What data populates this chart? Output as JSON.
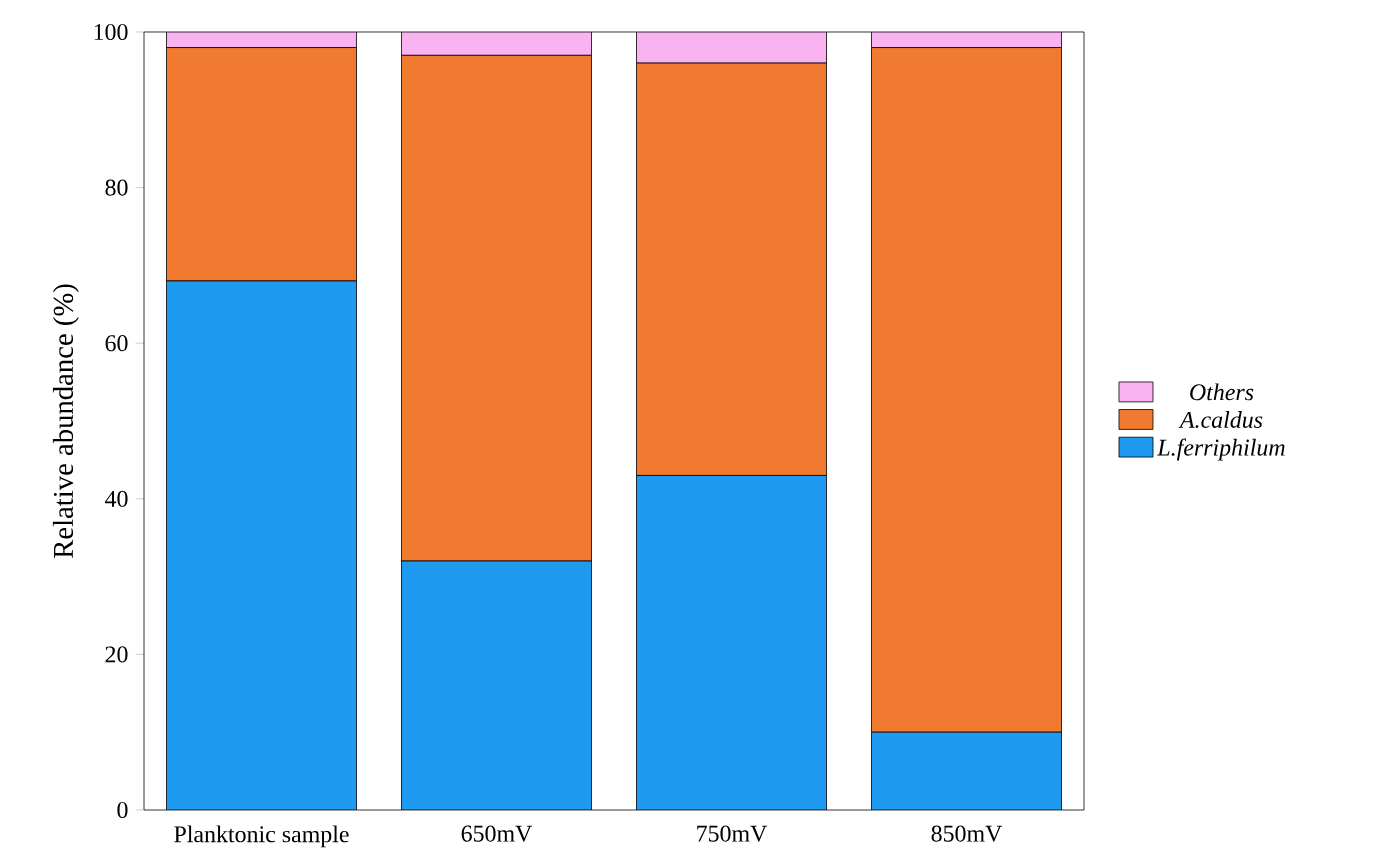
{
  "chart_data": {
    "type": "bar",
    "stacked": true,
    "ylabel": "Relative abundance (%)",
    "categories": [
      "Planktonic sample",
      "650mV",
      "750mV",
      "850mV"
    ],
    "series": [
      {
        "name": "*L.ferriphilum*",
        "color": "#1e9bf0",
        "values": [
          68,
          32,
          43,
          10
        ]
      },
      {
        "name": "*A.caldus*",
        "color": "#f07a30",
        "values": [
          30,
          65,
          53,
          88
        ]
      },
      {
        "name": "*Others*",
        "color": "#f9b3f0",
        "values": [
          2,
          3,
          4,
          2
        ]
      }
    ],
    "ylim": [
      0,
      100
    ],
    "yticks": [
      0,
      20,
      40,
      60,
      80,
      100
    ],
    "legend": "right"
  }
}
